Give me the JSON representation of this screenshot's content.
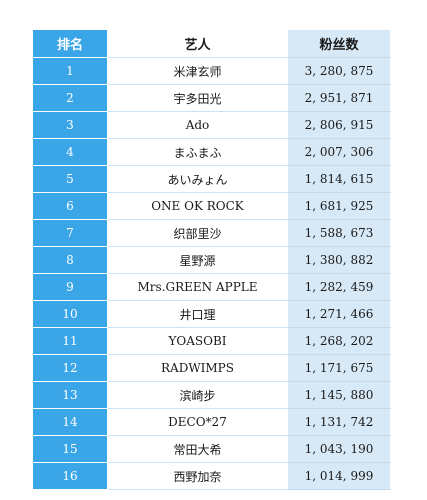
{
  "table": {
    "headers": {
      "rank": "排名",
      "artist": "艺人",
      "fans": "粉丝数"
    },
    "rows": [
      {
        "rank": "1",
        "artist": "米津玄师",
        "fans": "3, 280, 875"
      },
      {
        "rank": "2",
        "artist": "宇多田光",
        "fans": "2, 951, 871"
      },
      {
        "rank": "3",
        "artist": "Ado",
        "fans": "2, 806, 915"
      },
      {
        "rank": "4",
        "artist": "まふまふ",
        "fans": "2, 007, 306"
      },
      {
        "rank": "5",
        "artist": "あいみょん",
        "fans": "1, 814, 615"
      },
      {
        "rank": "6",
        "artist": "ONE OK ROCK",
        "fans": "1, 681, 925"
      },
      {
        "rank": "7",
        "artist": "织部里沙",
        "fans": "1, 588, 673"
      },
      {
        "rank": "8",
        "artist": "星野源",
        "fans": "1, 380, 882"
      },
      {
        "rank": "9",
        "artist": "Mrs.GREEN APPLE",
        "fans": "1, 282, 459"
      },
      {
        "rank": "10",
        "artist": "井口理",
        "fans": "1, 271, 466"
      },
      {
        "rank": "11",
        "artist": "YOASOBI",
        "fans": "1, 268, 202"
      },
      {
        "rank": "12",
        "artist": "RADWIMPS",
        "fans": "1, 171, 675"
      },
      {
        "rank": "13",
        "artist": "滨崎步",
        "fans": "1, 145, 880"
      },
      {
        "rank": "14",
        "artist": "DECO*27",
        "fans": "1, 131, 742"
      },
      {
        "rank": "15",
        "artist": "常田大希",
        "fans": "1, 043, 190"
      },
      {
        "rank": "16",
        "artist": "西野加奈",
        "fans": "1, 014, 999"
      }
    ]
  },
  "colors": {
    "rank_column": "#3aa6e8",
    "fans_column": "#d7e9f7",
    "artist_column": "#ffffff"
  }
}
